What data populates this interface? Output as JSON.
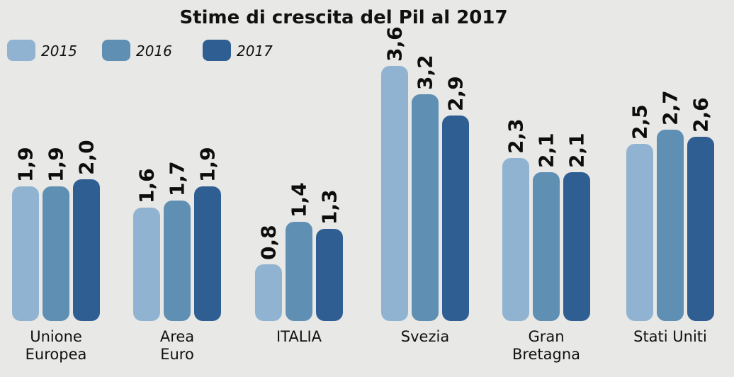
{
  "chart_data": {
    "type": "bar",
    "title": "Stime di crescita del Pil al 2017",
    "categories": [
      "Unione Europea",
      "Area Euro",
      "ITALIA",
      "Svezia",
      "Gran Bretagna",
      "Stati Uniti"
    ],
    "category_labels": [
      [
        "Unione",
        "Europea"
      ],
      [
        "Area",
        "Euro"
      ],
      [
        "ITALIA"
      ],
      [
        "Svezia"
      ],
      [
        "Gran",
        "Bretagna"
      ],
      [
        "Stati Uniti"
      ]
    ],
    "series": [
      {
        "name": "2015",
        "color": "#8fb3d0",
        "values": [
          1.9,
          1.6,
          0.8,
          3.6,
          2.3,
          2.5
        ],
        "labels": [
          "1,9",
          "1,6",
          "0,8",
          "3,6",
          "2,3",
          "2,5"
        ]
      },
      {
        "name": "2016",
        "color": "#5f8fb3",
        "values": [
          1.9,
          1.7,
          1.4,
          3.2,
          2.1,
          2.7
        ],
        "labels": [
          "1,9",
          "1,7",
          "1,4",
          "3,2",
          "2,1",
          "2,7"
        ]
      },
      {
        "name": "2017",
        "color": "#2f5e93",
        "values": [
          2.0,
          1.9,
          1.3,
          2.9,
          2.1,
          2.6
        ],
        "labels": [
          "2,0",
          "1,9",
          "1,3",
          "2,9",
          "2,1",
          "2,6"
        ]
      }
    ],
    "xlabel": "",
    "ylabel": "",
    "ylim": [
      0,
      3.6
    ],
    "legend": "top-left",
    "grid": false
  }
}
